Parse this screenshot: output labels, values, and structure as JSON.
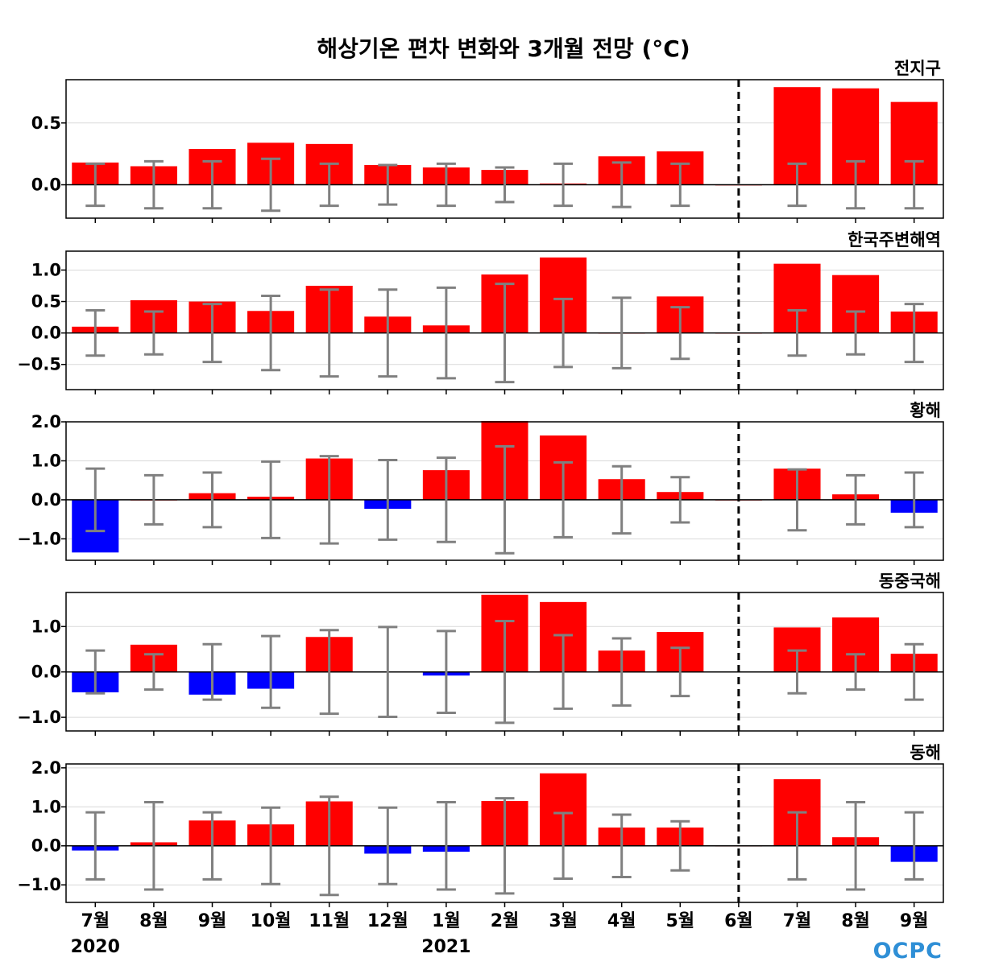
{
  "title": "해상기온 편차 변화와 3개월 전망 (°C)",
  "logo": "OCPC",
  "colors": {
    "positive": "#ff0000",
    "negative": "#0000ff",
    "errorbar": "#808080",
    "grid": "#d9d9d9",
    "divider": "#000000"
  },
  "chart_data": {
    "type": "bar",
    "categories": [
      "7월",
      "8월",
      "9월",
      "10월",
      "11월",
      "12월",
      "1월",
      "2월",
      "3월",
      "4월",
      "5월",
      "6월",
      "7월",
      "8월",
      "9월"
    ],
    "years": [
      {
        "label": "2020",
        "index": 0
      },
      {
        "label": "2021",
        "index": 6
      }
    ],
    "forecast_divider_after": "6월",
    "panels": [
      {
        "name": "전지구",
        "ylim": [
          -0.27,
          0.85
        ],
        "yticks": [
          0.0,
          0.5
        ],
        "ytick_labels": [
          "0.0",
          "0.5"
        ],
        "values": [
          0.18,
          0.15,
          0.29,
          0.34,
          0.33,
          0.16,
          0.14,
          0.12,
          0.01,
          0.23,
          0.27,
          0.0,
          0.79,
          0.78,
          0.67
        ],
        "error": [
          0.17,
          0.19,
          0.19,
          0.21,
          0.17,
          0.16,
          0.17,
          0.14,
          0.17,
          0.18,
          0.17,
          0.0,
          0.17,
          0.19,
          0.19
        ]
      },
      {
        "name": "한국주변해역",
        "ylim": [
          -0.9,
          1.3
        ],
        "yticks": [
          -0.5,
          0.0,
          0.5,
          1.0
        ],
        "ytick_labels": [
          "−0.5",
          "0.0",
          "0.5",
          "1.0"
        ],
        "values": [
          0.1,
          0.52,
          0.5,
          0.35,
          0.75,
          0.26,
          0.12,
          0.93,
          1.2,
          0.0,
          0.58,
          0.0,
          1.1,
          0.92,
          0.34
        ],
        "error": [
          0.36,
          0.34,
          0.46,
          0.59,
          0.69,
          0.69,
          0.72,
          0.78,
          0.54,
          0.56,
          0.41,
          0.0,
          0.36,
          0.34,
          0.46
        ]
      },
      {
        "name": "황해",
        "ylim": [
          -1.55,
          2.0
        ],
        "yticks": [
          -1.0,
          0.0,
          1.0,
          2.0
        ],
        "ytick_labels": [
          "−1.0",
          "0.0",
          "1.0",
          "2.0"
        ],
        "values": [
          -1.35,
          0.0,
          0.17,
          0.08,
          1.06,
          -0.23,
          0.76,
          2.02,
          1.65,
          0.53,
          0.2,
          0.0,
          0.8,
          0.14,
          -0.33
        ],
        "error": [
          0.8,
          0.63,
          0.7,
          0.98,
          1.12,
          1.02,
          1.08,
          1.37,
          0.96,
          0.86,
          0.58,
          0.0,
          0.78,
          0.63,
          0.7
        ]
      },
      {
        "name": "동중국해",
        "ylim": [
          -1.3,
          1.75
        ],
        "yticks": [
          -1.0,
          0.0,
          1.0
        ],
        "ytick_labels": [
          "−1.0",
          "0.0",
          "1.0"
        ],
        "values": [
          -0.45,
          0.6,
          -0.5,
          -0.37,
          0.77,
          0.0,
          -0.08,
          1.7,
          1.54,
          0.47,
          0.88,
          0.0,
          0.98,
          1.2,
          0.4
        ],
        "error": [
          0.47,
          0.39,
          0.61,
          0.79,
          0.92,
          0.99,
          0.9,
          1.12,
          0.81,
          0.74,
          0.53,
          0.0,
          0.47,
          0.39,
          0.61
        ]
      },
      {
        "name": "동해",
        "ylim": [
          -1.45,
          2.1
        ],
        "yticks": [
          -1.0,
          0.0,
          1.0,
          2.0
        ],
        "ytick_labels": [
          "−1.0",
          "0.0",
          "1.0",
          "2.0"
        ],
        "values": [
          -0.12,
          0.09,
          0.65,
          0.55,
          1.14,
          -0.2,
          -0.15,
          1.15,
          1.86,
          0.47,
          0.47,
          0.0,
          1.71,
          0.22,
          -0.41
        ],
        "error": [
          0.86,
          1.12,
          0.86,
          0.98,
          1.26,
          0.98,
          1.12,
          1.22,
          0.84,
          0.8,
          0.63,
          0.0,
          0.86,
          1.12,
          0.86
        ]
      }
    ]
  }
}
